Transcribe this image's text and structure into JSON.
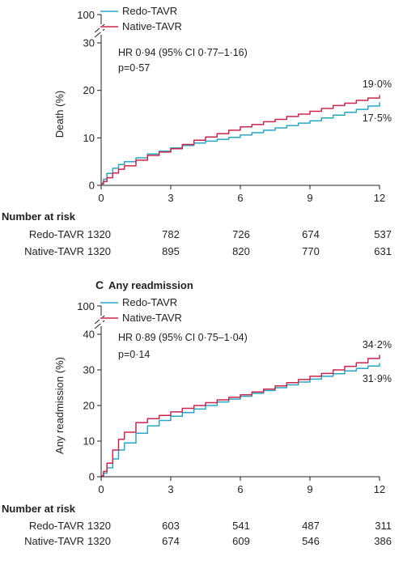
{
  "chart_data": [
    {
      "type": "line",
      "panel_letter": "",
      "panel_title": "",
      "xlabel": "",
      "ylabel": "Death (%)",
      "x_ticks": [
        0,
        3,
        6,
        9,
        12
      ],
      "y_ticks": [
        0,
        10,
        20,
        30
      ],
      "y_break_label": "100",
      "xlim": [
        0,
        12
      ],
      "ylim": [
        0,
        33
      ],
      "annotation": [
        "HR 0·94 (95% CI 0·77–1·16)",
        "p=0·57"
      ],
      "legend": {
        "placement": "top-left",
        "entries": [
          "Redo-TAVR",
          "Native-TAVR"
        ]
      },
      "series": [
        {
          "name": "Redo-TAVR",
          "color": "#2aa6c4",
          "end_label": "17·5%",
          "x": [
            0,
            0.1,
            0.25,
            0.5,
            0.75,
            1,
            1.5,
            2,
            2.5,
            3,
            3.5,
            4,
            4.5,
            5,
            5.5,
            6,
            6.5,
            7,
            7.5,
            8,
            8.5,
            9,
            9.5,
            10,
            10.5,
            11,
            11.5,
            12
          ],
          "y": [
            0.5,
            1.3,
            2.5,
            3.6,
            4.4,
            5.0,
            5.8,
            6.6,
            7.2,
            7.9,
            8.4,
            8.9,
            9.3,
            9.7,
            10.1,
            10.6,
            11.1,
            11.6,
            12.1,
            12.6,
            13.1,
            13.6,
            14.2,
            14.8,
            15.4,
            16.0,
            16.7,
            17.5
          ]
        },
        {
          "name": "Native-TAVR",
          "color": "#c8264b",
          "end_label": "19·0%",
          "x": [
            0,
            0.1,
            0.25,
            0.5,
            0.75,
            1,
            1.5,
            2,
            2.5,
            3,
            3.5,
            4,
            4.5,
            5,
            5.5,
            6,
            6.5,
            7,
            7.5,
            8,
            8.5,
            9,
            9.5,
            10,
            10.5,
            11,
            11.5,
            12
          ],
          "y": [
            0.3,
            0.8,
            1.6,
            2.6,
            3.4,
            4.1,
            5.3,
            6.3,
            7.0,
            7.7,
            8.6,
            9.5,
            10.2,
            10.9,
            11.6,
            12.3,
            12.8,
            13.4,
            13.9,
            14.5,
            15.0,
            15.6,
            16.2,
            16.8,
            17.3,
            17.9,
            18.4,
            19.0
          ]
        }
      ],
      "risk_table": {
        "heading": "Number at risk",
        "rows": [
          {
            "label": "Redo-TAVR",
            "values": [
              "1320",
              "782",
              "726",
              "674",
              "537"
            ]
          },
          {
            "label": "Native-TAVR",
            "values": [
              "1320",
              "895",
              "820",
              "770",
              "631"
            ]
          }
        ]
      }
    },
    {
      "type": "line",
      "panel_letter": "C",
      "panel_title": "Any readmission",
      "xlabel": "",
      "ylabel": "Any readmission (%)",
      "x_ticks": [
        0,
        3,
        6,
        9,
        12
      ],
      "y_ticks": [
        0,
        10,
        20,
        30,
        40
      ],
      "y_break_label": "100",
      "xlim": [
        0,
        12
      ],
      "ylim": [
        0,
        42
      ],
      "annotation": [
        "HR 0·89 (95% CI 0·75–1·04)",
        "p=0·14"
      ],
      "legend": {
        "placement": "top-left",
        "entries": [
          "Redo-TAVR",
          "Native-TAVR"
        ]
      },
      "series": [
        {
          "name": "Redo-TAVR",
          "color": "#2aa6c4",
          "end_label": "31·9%",
          "x": [
            0,
            0.1,
            0.25,
            0.5,
            0.75,
            1,
            1.5,
            2,
            2.5,
            3,
            3.5,
            4,
            4.5,
            5,
            5.5,
            6,
            6.5,
            7,
            7.5,
            8,
            8.5,
            9,
            9.5,
            10,
            10.5,
            11,
            11.5,
            12
          ],
          "y": [
            0.3,
            1.0,
            2.5,
            5.0,
            7.5,
            9.5,
            12.2,
            14.3,
            15.8,
            17.0,
            18.0,
            19.0,
            20.0,
            21.0,
            21.8,
            22.6,
            23.4,
            24.2,
            25.0,
            25.8,
            26.6,
            27.4,
            28.2,
            28.9,
            29.7,
            30.4,
            31.1,
            31.9
          ]
        },
        {
          "name": "Native-TAVR",
          "color": "#c8264b",
          "end_label": "34·2%",
          "x": [
            0,
            0.1,
            0.25,
            0.5,
            0.75,
            1,
            1.5,
            2,
            2.5,
            3,
            3.5,
            4,
            4.5,
            5,
            5.5,
            6,
            6.5,
            7,
            7.5,
            8,
            8.5,
            9,
            9.5,
            10,
            10.5,
            11,
            11.5,
            12
          ],
          "y": [
            0.3,
            1.5,
            3.8,
            7.5,
            10.5,
            12.5,
            15.2,
            16.3,
            17.2,
            18.2,
            19.2,
            20.0,
            20.8,
            21.6,
            22.3,
            23.0,
            23.8,
            24.6,
            25.5,
            26.4,
            27.3,
            28.2,
            29.0,
            30.0,
            31.0,
            32.0,
            33.2,
            34.2
          ]
        }
      ],
      "risk_table": {
        "heading": "Number at risk",
        "rows": [
          {
            "label": "Redo-TAVR",
            "values": [
              "1320",
              "603",
              "541",
              "487",
              "311"
            ]
          },
          {
            "label": "Native-TAVR",
            "values": [
              "1320",
              "674",
              "609",
              "546",
              "386"
            ]
          }
        ]
      }
    }
  ]
}
